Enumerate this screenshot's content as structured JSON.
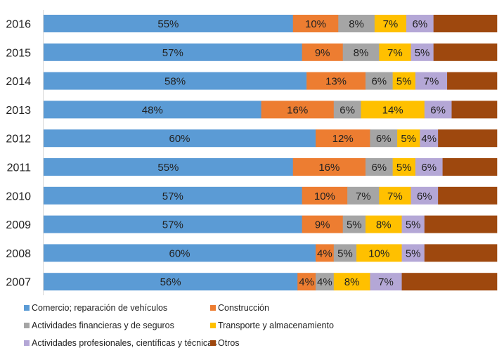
{
  "chart_data": {
    "type": "bar",
    "orientation": "horizontal",
    "stacked": "100%",
    "title": "",
    "xlabel": "",
    "ylabel": "",
    "xlim": [
      0,
      100
    ],
    "grid": false,
    "legend_position": "bottom",
    "categories": [
      "2016",
      "2015",
      "2014",
      "2013",
      "2012",
      "2011",
      "2010",
      "2009",
      "2008",
      "2007"
    ],
    "series": [
      {
        "name": "Comercio; reparación de vehículos",
        "color": "#5B9BD5",
        "values": [
          55,
          57,
          58,
          48,
          60,
          55,
          57,
          57,
          60,
          56
        ],
        "labels": [
          "55%",
          "57%",
          "58%",
          "48%",
          "60%",
          "55%",
          "57%",
          "57%",
          "60%",
          "56%"
        ]
      },
      {
        "name": "Construcción",
        "color": "#ED7D31",
        "values": [
          10,
          9,
          13,
          16,
          12,
          16,
          10,
          9,
          4,
          4
        ],
        "labels": [
          "10%",
          "9%",
          "13%",
          "16%",
          "12%",
          "16%",
          "10%",
          "9%",
          "4%",
          "4%"
        ]
      },
      {
        "name": "Actividades financieras y de seguros",
        "color": "#A5A5A5",
        "values": [
          8,
          8,
          6,
          6,
          6,
          6,
          7,
          5,
          5,
          4
        ],
        "labels": [
          "8%",
          "8%",
          "6%",
          "6%",
          "6%",
          "6%",
          "7%",
          "5%",
          "5%",
          "4%"
        ]
      },
      {
        "name": "Transporte y almacenamiento",
        "color": "#FFC000",
        "values": [
          7,
          7,
          5,
          14,
          5,
          5,
          7,
          8,
          10,
          8
        ],
        "labels": [
          "7%",
          "7%",
          "5%",
          "14%",
          "5%",
          "5%",
          "7%",
          "8%",
          "10%",
          "8%"
        ]
      },
      {
        "name": "Actividades profesionales, científicas y técnicas",
        "color": "#B4A7D6",
        "values": [
          6,
          5,
          7,
          6,
          4,
          6,
          6,
          5,
          5,
          7
        ],
        "labels": [
          "6%",
          "5%",
          "7%",
          "6%",
          "4%",
          "6%",
          "6%",
          "5%",
          "5%",
          "7%"
        ]
      },
      {
        "name": "Otros",
        "color": "#9E480E",
        "values": [
          14,
          14,
          11,
          10,
          13,
          12,
          13,
          16,
          16,
          21
        ],
        "labels": [
          "",
          "",
          "",
          "",
          "",
          "",
          "",
          "",
          "",
          ""
        ]
      }
    ]
  },
  "legend": {
    "items": [
      {
        "label": "Comercio; reparación de vehículos",
        "color": "#5B9BD5"
      },
      {
        "label": "Construcción",
        "color": "#ED7D31"
      },
      {
        "label": "Actividades financieras y de seguros",
        "color": "#A5A5A5"
      },
      {
        "label": "Transporte y almacenamiento",
        "color": "#FFC000"
      },
      {
        "label": "Actividades profesionales, científicas y técnicas",
        "color": "#B4A7D6"
      },
      {
        "label": "Otros",
        "color": "#9E480E"
      }
    ]
  }
}
